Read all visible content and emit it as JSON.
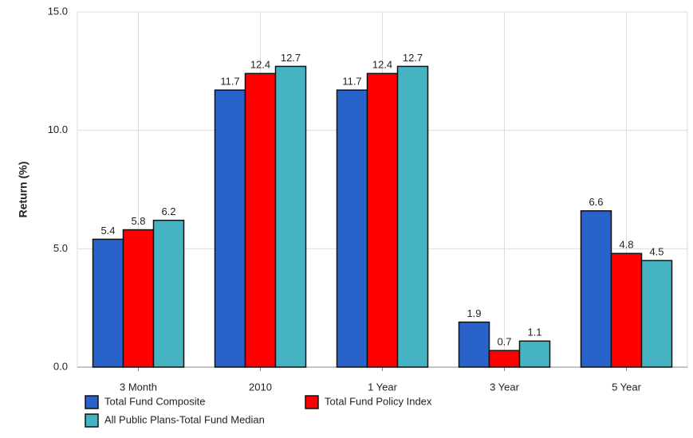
{
  "chart_data": {
    "type": "bar",
    "y_label": "Return (%)",
    "categories": [
      "3 Month",
      "2010",
      "1 Year",
      "3 Year",
      "5 Year"
    ],
    "series": [
      {
        "name": "Total Fund Composite",
        "color": "#2962c8",
        "values": [
          5.4,
          11.7,
          11.7,
          1.9,
          6.6
        ]
      },
      {
        "name": "Total Fund Policy Index",
        "color": "#ff0000",
        "values": [
          5.8,
          12.4,
          12.4,
          0.7,
          4.8
        ]
      },
      {
        "name": "All Public Plans-Total Fund Median",
        "color": "#45b3c1",
        "values": [
          6.2,
          12.7,
          12.7,
          1.1,
          4.5
        ]
      }
    ],
    "ylim": [
      0,
      15
    ],
    "yticks": [
      {
        "value": 0,
        "label": "0.0"
      },
      {
        "value": 5,
        "label": "5.0"
      },
      {
        "value": 10,
        "label": "10.0"
      },
      {
        "value": 15,
        "label": "15.0"
      }
    ],
    "grid": true,
    "legend": "bottom"
  }
}
